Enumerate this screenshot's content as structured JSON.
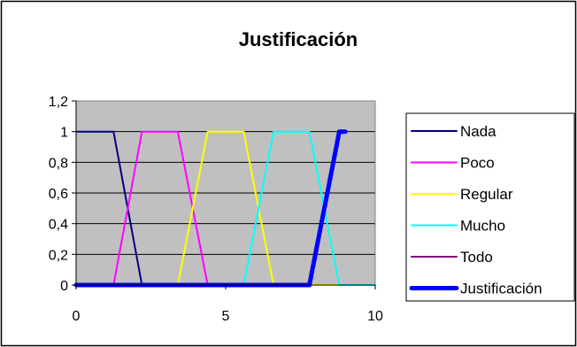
{
  "chart_data": {
    "type": "line",
    "title": "Justificación",
    "xlabel": "",
    "ylabel": "",
    "xlim": [
      0,
      10
    ],
    "ylim": [
      0,
      1.2
    ],
    "x_ticks": [
      "0",
      "5",
      "10"
    ],
    "y_ticks": [
      "0",
      "0,2",
      "0,4",
      "0,6",
      "0,8",
      "1",
      "1,2"
    ],
    "grid": "horizontal",
    "legend_position": "right",
    "plot_background": "#c0c0c0",
    "series": [
      {
        "name": "Nada",
        "color": "#000080",
        "width": 2,
        "points": [
          [
            0,
            1
          ],
          [
            1.25,
            1
          ],
          [
            2.2,
            0
          ],
          [
            10,
            0
          ]
        ]
      },
      {
        "name": "Poco",
        "color": "#ff00ff",
        "width": 2,
        "points": [
          [
            0,
            0
          ],
          [
            1.25,
            0
          ],
          [
            2.2,
            1
          ],
          [
            3.4,
            1
          ],
          [
            4.4,
            0
          ],
          [
            10,
            0
          ]
        ]
      },
      {
        "name": "Regular",
        "color": "#ffff00",
        "width": 2,
        "points": [
          [
            0,
            0
          ],
          [
            3.4,
            0
          ],
          [
            4.4,
            1
          ],
          [
            5.6,
            1
          ],
          [
            6.6,
            0
          ],
          [
            10,
            0
          ]
        ]
      },
      {
        "name": "Mucho",
        "color": "#00ffff",
        "width": 2,
        "points": [
          [
            0,
            0
          ],
          [
            5.6,
            0
          ],
          [
            6.6,
            1
          ],
          [
            7.8,
            1
          ],
          [
            8.8,
            0
          ],
          [
            10,
            0
          ]
        ]
      },
      {
        "name": "Todo",
        "color": "#800080",
        "width": 2,
        "points": [
          [
            0,
            0
          ],
          [
            7.8,
            0
          ],
          [
            8.8,
            1
          ],
          [
            9,
            1
          ]
        ]
      },
      {
        "name": "Justificación",
        "color": "#0000ff",
        "width": 5,
        "points": [
          [
            0,
            0
          ],
          [
            7.8,
            0
          ],
          [
            8.8,
            1
          ],
          [
            9,
            1
          ]
        ]
      }
    ]
  }
}
